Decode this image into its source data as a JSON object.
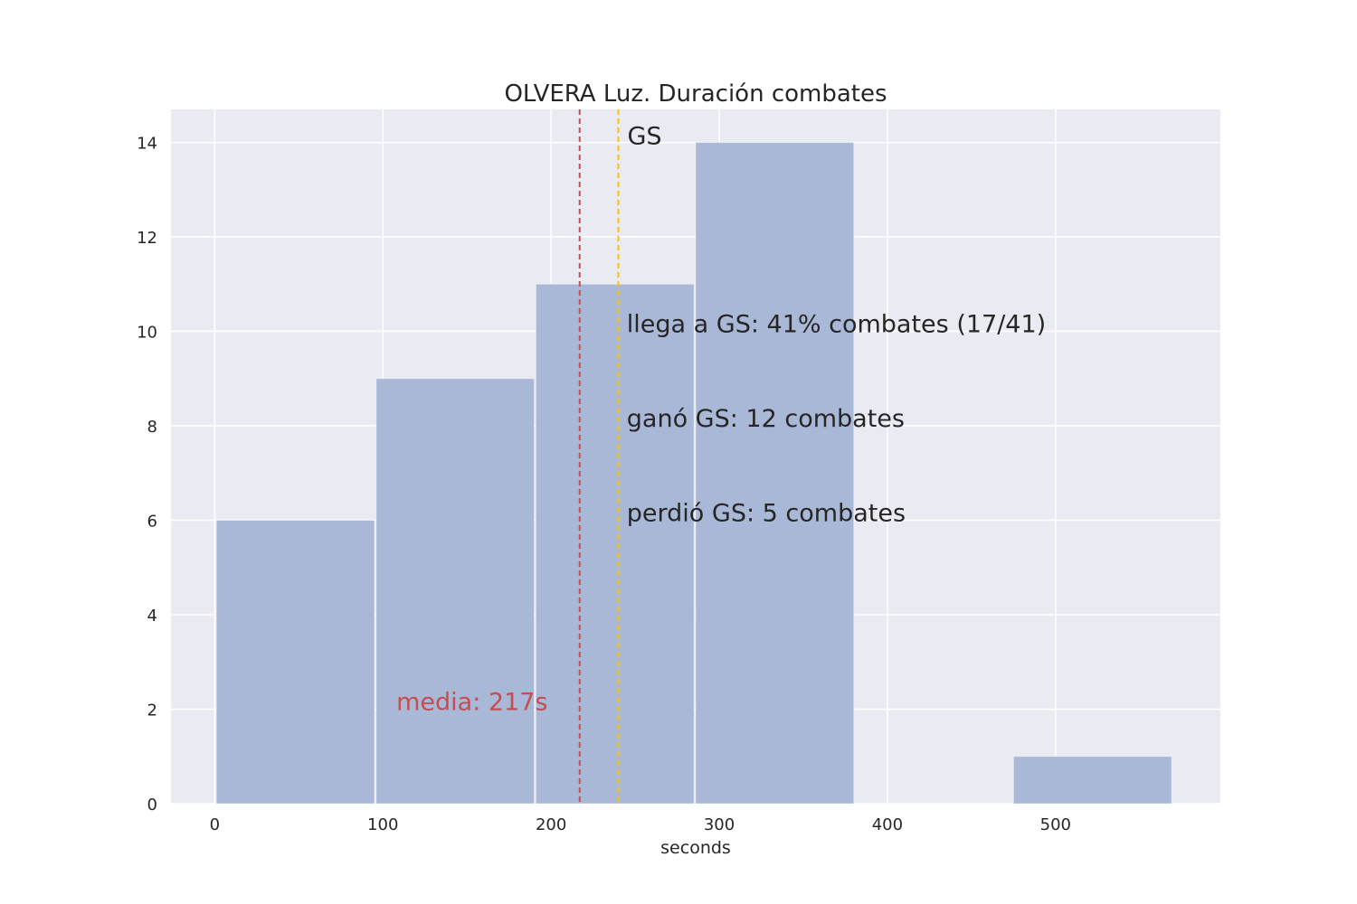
{
  "chart_data": {
    "type": "bar",
    "title": "OLVERA Luz. Duración combates",
    "xlabel": "seconds",
    "ylabel": "",
    "xlim": [
      -26,
      598
    ],
    "ylim": [
      0,
      14.7
    ],
    "grid": true,
    "bins": [
      {
        "start": 1,
        "end": 95,
        "count": 6
      },
      {
        "start": 96,
        "end": 190,
        "count": 9
      },
      {
        "start": 191,
        "end": 285,
        "count": 11
      },
      {
        "start": 286,
        "end": 380,
        "count": 14
      },
      {
        "start": 381,
        "end": 475,
        "count": 0
      },
      {
        "start": 475,
        "end": 569,
        "count": 1
      }
    ],
    "xticks": [
      0,
      100,
      200,
      300,
      400,
      500
    ],
    "yticks": [
      0,
      2,
      4,
      6,
      8,
      10,
      12,
      14
    ],
    "mean_line": {
      "x": 217,
      "label": "media: 217s",
      "color": "#c44e52",
      "label_x": 108,
      "label_y": 2
    },
    "gs_line": {
      "x": 240,
      "label": "GS",
      "color": "#ffc000",
      "label_y": 14
    },
    "annotations": [
      {
        "text": "llega a GS: 41% combates (17/41)",
        "x": 245,
        "y": 10
      },
      {
        "text": "ganó GS: 12 combates",
        "x": 245,
        "y": 8
      },
      {
        "text": "perdió GS: 5 combates",
        "x": 245,
        "y": 6
      }
    ],
    "colors": {
      "bar": "#a8b8d6",
      "background": "#eaeaf2",
      "grid": "#ffffff",
      "text": "#262626"
    }
  }
}
